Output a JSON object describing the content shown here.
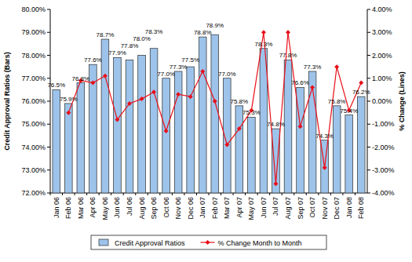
{
  "chart_data": {
    "type": "bar",
    "categories": [
      "Jan 06",
      "Feb 06",
      "Mar 06",
      "Apr 06",
      "May 06",
      "Jun 06",
      "Jul 06",
      "Aug 06",
      "Sep 06",
      "Oct 06",
      "Nov 06",
      "Dec 06",
      "Jan 07",
      "Feb 07",
      "Mar 07",
      "Apr 07",
      "May 07",
      "Jun 07",
      "Jul 07",
      "Aug 07",
      "Sep 07",
      "Oct 07",
      "Nov 07",
      "Dec 07",
      "Jan 08",
      "Feb 08"
    ],
    "series": [
      {
        "name": "Credit Approval Ratios",
        "type": "bar",
        "color": "#9dc3ea",
        "values": [
          76.5,
          75.9,
          76.8,
          77.6,
          78.7,
          77.9,
          77.8,
          78.0,
          78.3,
          77.0,
          77.3,
          77.5,
          78.8,
          78.9,
          77.0,
          75.8,
          75.3,
          78.3,
          74.8,
          77.8,
          76.6,
          77.3,
          74.3,
          75.8,
          75.4,
          76.2
        ],
        "value_labels": [
          "76.5%",
          "75.9%",
          "76.8%",
          "77.6%",
          "78.7%",
          "77.9%",
          "77.8%",
          "78.0%",
          "78.3%",
          "77.0%",
          "77.3%",
          "77.5%",
          "78.8%",
          "78.9%",
          "77.0%",
          "75.8%",
          "75.3%",
          "78.3%",
          "74.8%",
          "77.8%",
          "76.6%",
          "77.3%",
          "74.3%",
          "75.8%",
          "75.4%",
          "76.2%"
        ]
      },
      {
        "name": "% Change Month to Month",
        "type": "line",
        "axis": "y2",
        "color": "#e8101a",
        "marker": "diamond",
        "values": [
          null,
          -0.5,
          0.9,
          0.8,
          1.1,
          -0.8,
          -0.1,
          0.1,
          0.4,
          -1.3,
          0.3,
          0.2,
          1.3,
          0.0,
          -1.9,
          -1.2,
          -0.4,
          3.0,
          -3.6,
          3.0,
          -1.1,
          0.6,
          -2.9,
          1.5,
          -0.4,
          0.8
        ]
      }
    ],
    "y_label": "Credit Approval Ratios (Bars)",
    "y2_label": "% Change (Lines)",
    "ylim": [
      72,
      80
    ],
    "yticks": [
      {
        "value": 72,
        "label": "72.00%"
      },
      {
        "value": 73,
        "label": "73.00%"
      },
      {
        "value": 74,
        "label": "74.00%"
      },
      {
        "value": 75,
        "label": "75.00%"
      },
      {
        "value": 76,
        "label": "76.00%"
      },
      {
        "value": 77,
        "label": "77.00%"
      },
      {
        "value": 78,
        "label": "78.00%"
      },
      {
        "value": 79,
        "label": "79.00%"
      },
      {
        "value": 80,
        "label": "80.00%"
      }
    ],
    "y2lim": [
      -4,
      4
    ],
    "y2ticks": [
      {
        "value": -4,
        "label": "-4.00%"
      },
      {
        "value": -3,
        "label": "-3.00%"
      },
      {
        "value": -2,
        "label": "-2.00%"
      },
      {
        "value": -1,
        "label": "-1.00%"
      },
      {
        "value": 0,
        "label": "0.00%"
      },
      {
        "value": 1,
        "label": "1.00%"
      },
      {
        "value": 2,
        "label": "2.00%"
      },
      {
        "value": 3,
        "label": "3.00%"
      },
      {
        "value": 4,
        "label": "4.00%"
      }
    ],
    "data_labels": true,
    "legend": "bottom",
    "grid": false
  }
}
